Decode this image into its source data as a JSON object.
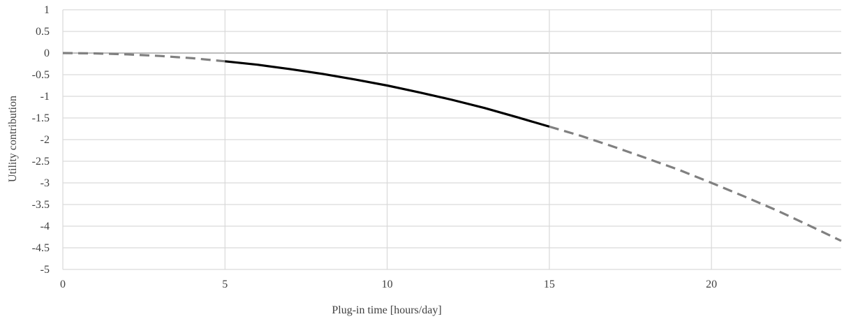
{
  "chart_data": {
    "type": "line",
    "title": "",
    "xlabel": "Plug-in time [hours/day]",
    "ylabel": "Utility contribution",
    "xlim": [
      0,
      24
    ],
    "ylim": [
      -5,
      1
    ],
    "grid": true,
    "legend": "none",
    "x_ticks": [
      "0",
      "5",
      "10",
      "15",
      "20"
    ],
    "x_tick_values": [
      0,
      5,
      10,
      15,
      20
    ],
    "y_ticks": [
      "1",
      "0.5",
      "0",
      "-0.5",
      "-1",
      "-1.5",
      "-2",
      "-2.5",
      "-3",
      "-3.5",
      "-4",
      "-4.5",
      "-5"
    ],
    "y_tick_values": [
      1,
      0.5,
      0,
      -0.5,
      -1,
      -1.5,
      -2,
      -2.5,
      -3,
      -3.5,
      -4,
      -4.5,
      -5
    ],
    "series": [
      {
        "style": "dashed",
        "color": "#808080",
        "x": [
          0,
          1,
          2,
          3,
          4,
          5
        ],
        "y": [
          0,
          -0.008,
          -0.03,
          -0.068,
          -0.12,
          -0.19
        ]
      },
      {
        "style": "solid",
        "color": "#000000",
        "x": [
          5,
          6,
          7,
          8,
          9,
          10,
          11,
          12,
          13,
          14,
          15
        ],
        "y": [
          -0.19,
          -0.27,
          -0.37,
          -0.48,
          -0.61,
          -0.75,
          -0.91,
          -1.08,
          -1.27,
          -1.48,
          -1.7
        ]
      },
      {
        "style": "dashed",
        "color": "#808080",
        "x": [
          15,
          16,
          17,
          18,
          19,
          20,
          21,
          22,
          23,
          24
        ],
        "y": [
          -1.7,
          -1.92,
          -2.17,
          -2.43,
          -2.7,
          -3.0,
          -3.31,
          -3.63,
          -3.98,
          -4.34
        ]
      }
    ]
  }
}
